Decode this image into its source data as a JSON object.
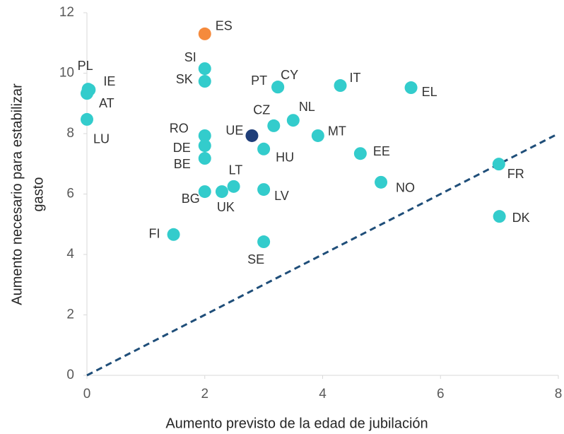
{
  "chart_data": {
    "type": "scatter",
    "xlabel": "Aumento  previsto de la edad de jubilación",
    "ylabel": [
      "Aumento  necesario para estabilizar",
      "gasto"
    ],
    "labels": [
      "ES",
      "SI",
      "SK",
      "PL",
      "IE",
      "AT",
      "LU",
      "PT",
      "CY",
      "IT",
      "EL",
      "CZ",
      "NL",
      "MT",
      "UE",
      "HU",
      "RO",
      "DE",
      "BE",
      "EE",
      "FR",
      "NO",
      "LT",
      "LV",
      "BG",
      "UK",
      "DK",
      "FI",
      "SE"
    ],
    "x": [
      2.0,
      2.0,
      2.0,
      0.02,
      0.04,
      0.0,
      0.0,
      3.24,
      3.24,
      4.3,
      5.5,
      3.17,
      3.5,
      3.92,
      2.8,
      3.0,
      2.0,
      2.0,
      2.0,
      4.64,
      6.99,
      4.99,
      2.49,
      3.0,
      2.0,
      2.29,
      7.0,
      1.47,
      3.0
    ],
    "values": [
      11.3,
      10.15,
      9.73,
      9.47,
      9.45,
      9.33,
      8.47,
      9.54,
      9.54,
      9.59,
      9.52,
      8.26,
      8.44,
      7.93,
      7.93,
      7.49,
      7.93,
      7.6,
      7.18,
      7.34,
      6.99,
      6.39,
      6.25,
      6.15,
      6.08,
      6.08,
      5.26,
      4.66,
      4.42
    ],
    "colors": [
      "#f58a3c",
      "#33cccc",
      "#33cccc",
      "#33cccc",
      "#33cccc",
      "#33cccc",
      "#33cccc",
      "#33cccc",
      "#33cccc",
      "#33cccc",
      "#33cccc",
      "#33cccc",
      "#33cccc",
      "#33cccc",
      "#1f3e79",
      "#33cccc",
      "#33cccc",
      "#33cccc",
      "#33cccc",
      "#33cccc",
      "#33cccc",
      "#33cccc",
      "#33cccc",
      "#33cccc",
      "#33cccc",
      "#33cccc",
      "#33cccc",
      "#33cccc",
      "#33cccc"
    ],
    "reference_line_color": "#1f4e79",
    "xlim": [
      0,
      8
    ],
    "xticks": [
      0,
      2,
      4,
      6,
      8
    ],
    "ylim": [
      0,
      12
    ],
    "yticks": [
      0,
      2,
      4,
      6,
      8,
      10,
      12
    ]
  }
}
